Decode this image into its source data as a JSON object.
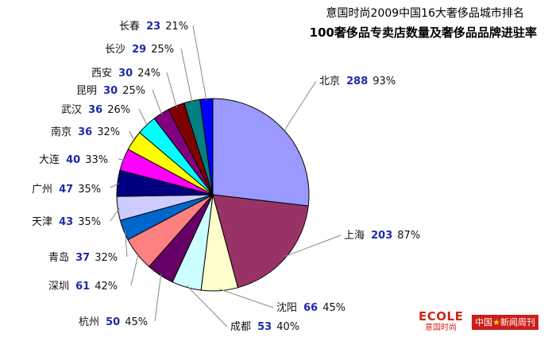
{
  "header": {
    "title": "意国时尚2009中国16大奢侈品城市排名",
    "subtitle": "100奢侈品专卖店数量及奢侈品品牌进驻率"
  },
  "chart_data": {
    "type": "pie",
    "title": "意国时尚2009中国16大奢侈品城市排名",
    "subtitle": "100奢侈品专卖店数量及奢侈品品牌进驻率",
    "slices": [
      {
        "city": "北京",
        "count": 288,
        "rate": "93%",
        "color": "#9999ff"
      },
      {
        "city": "上海",
        "count": 203,
        "rate": "87%",
        "color": "#993366"
      },
      {
        "city": "沈阳",
        "count": 66,
        "rate": "45%",
        "color": "#ffffcc"
      },
      {
        "city": "成都",
        "count": 53,
        "rate": "40%",
        "color": "#ccffff"
      },
      {
        "city": "杭州",
        "count": 50,
        "rate": "45%",
        "color": "#660066"
      },
      {
        "city": "深圳",
        "count": 61,
        "rate": "42%",
        "color": "#ff8080"
      },
      {
        "city": "青岛",
        "count": 37,
        "rate": "32%",
        "color": "#0066cc"
      },
      {
        "city": "天津",
        "count": 43,
        "rate": "35%",
        "color": "#ccccff"
      },
      {
        "city": "广州",
        "count": 47,
        "rate": "35%",
        "color": "#000080"
      },
      {
        "city": "大连",
        "count": 40,
        "rate": "33%",
        "color": "#ff00ff"
      },
      {
        "city": "南京",
        "count": 36,
        "rate": "32%",
        "color": "#ffff00"
      },
      {
        "city": "武汉",
        "count": 36,
        "rate": "26%",
        "color": "#00ffff"
      },
      {
        "city": "昆明",
        "count": 30,
        "rate": "25%",
        "color": "#800080"
      },
      {
        "city": "西安",
        "count": 30,
        "rate": "24%",
        "color": "#800000"
      },
      {
        "city": "长沙",
        "count": 29,
        "rate": "25%",
        "color": "#008080"
      },
      {
        "city": "长春",
        "count": 23,
        "rate": "21%",
        "color": "#0000ff"
      }
    ]
  },
  "logos": {
    "ecole": "ECOLE",
    "ecole_sub": "意国时尚",
    "magazine_a": "中国",
    "magazine_star": "★",
    "magazine_b": "新闻周刊"
  }
}
